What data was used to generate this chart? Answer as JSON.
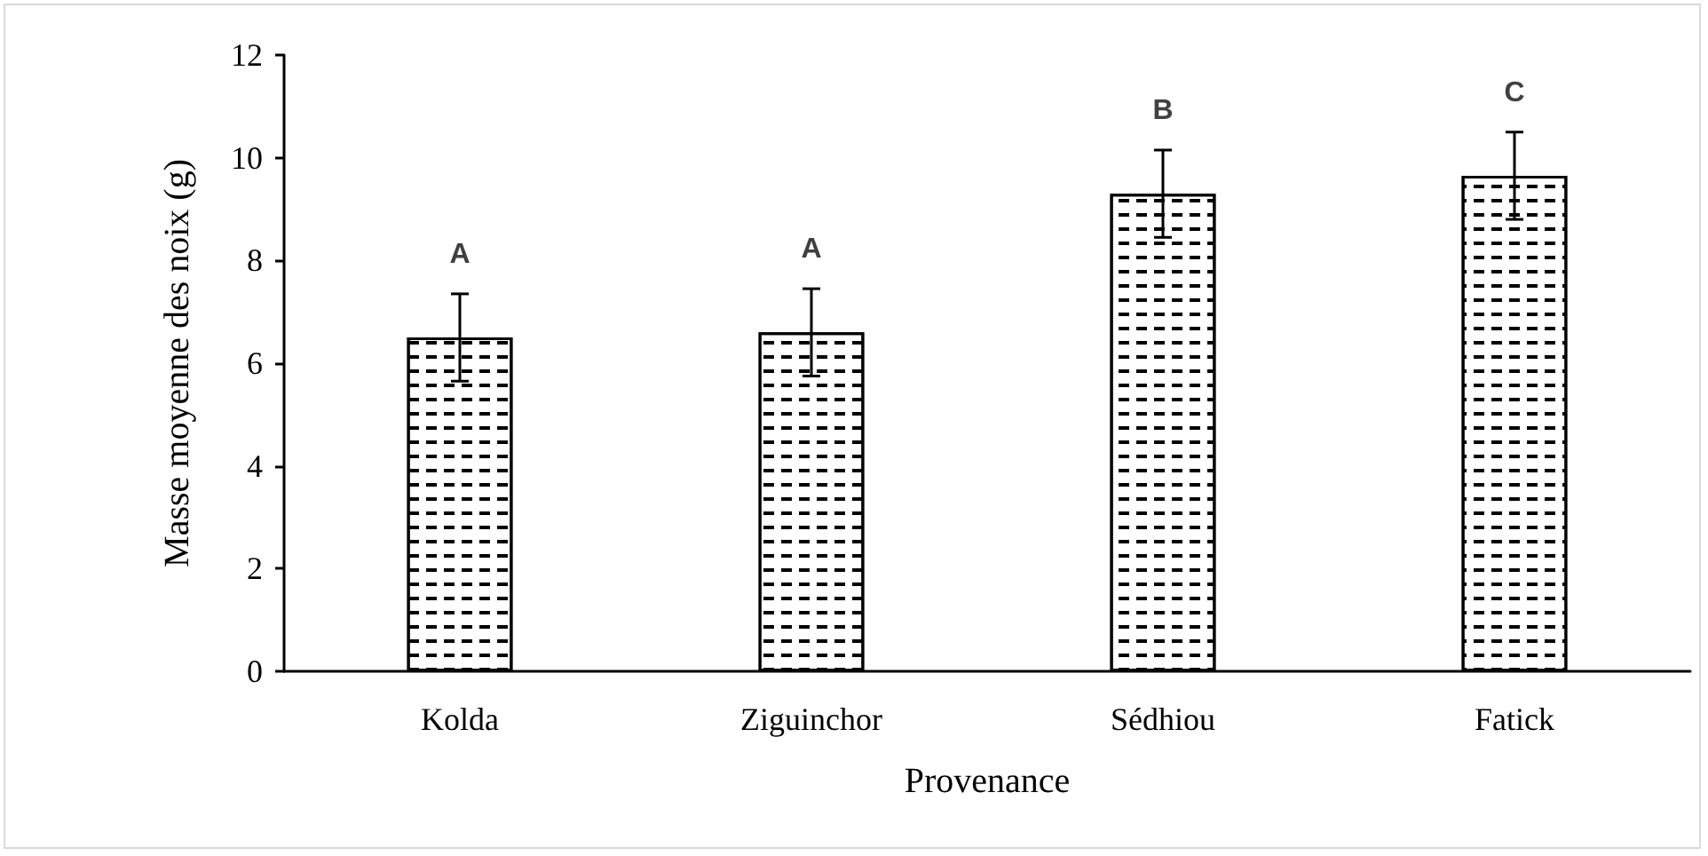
{
  "chart_data": {
    "type": "bar",
    "xlabel": "Provenance",
    "ylabel": "Masse moyenne des noix (g)",
    "categories": [
      "Kolda",
      "Ziguinchor",
      "Sédhiou",
      "Fatick"
    ],
    "values": [
      6.5,
      6.6,
      9.3,
      9.65
    ],
    "errors": [
      0.85,
      0.85,
      0.85,
      0.85
    ],
    "color": "#ffffff",
    "ylim": [
      0,
      12
    ],
    "yticks": [
      0,
      2,
      4,
      6,
      8,
      10,
      12
    ],
    "grid": false,
    "annotations": [
      "A",
      "A",
      "B",
      "C"
    ]
  }
}
